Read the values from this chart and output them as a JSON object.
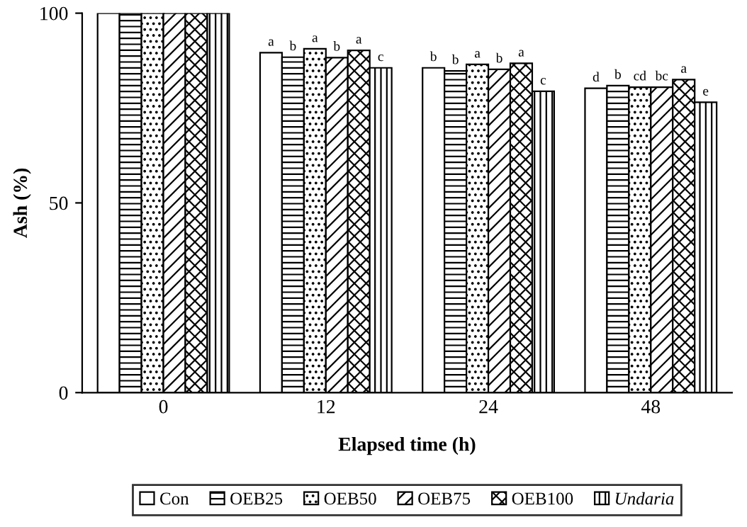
{
  "chart_data": {
    "type": "bar",
    "xlabel": "Elapsed time (h)",
    "ylabel": "Ash (%)",
    "categories": [
      "0",
      "12",
      "24",
      "48"
    ],
    "ylim": [
      0,
      100
    ],
    "yticks": [
      0,
      50,
      100
    ],
    "grid": false,
    "legend": "bottom",
    "series": [
      {
        "name": "Con",
        "color": "#000000",
        "values": [
          100,
          89.6,
          85.6,
          80.2
        ],
        "value_labels": [
          null,
          "a",
          "b",
          "d"
        ]
      },
      {
        "name": "OEB25",
        "color": "#000000",
        "values": [
          100,
          88.4,
          84.8,
          80.9
        ],
        "value_labels": [
          null,
          "b",
          "b",
          "b"
        ]
      },
      {
        "name": "OEB50",
        "color": "#000000",
        "values": [
          100,
          90.6,
          86.5,
          80.5
        ],
        "value_labels": [
          null,
          "a",
          "a",
          "cd"
        ]
      },
      {
        "name": "OEB75",
        "color": "#000000",
        "values": [
          100,
          88.3,
          85.2,
          80.5
        ],
        "value_labels": [
          null,
          "b",
          "b",
          "bc"
        ]
      },
      {
        "name": "OEB100",
        "color": "#000000",
        "values": [
          100,
          90.2,
          86.8,
          82.5
        ],
        "value_labels": [
          null,
          "a",
          "a",
          "a"
        ]
      },
      {
        "name": "Undaria",
        "color": "#000000",
        "values": [
          100,
          85.6,
          79.4,
          76.5
        ],
        "value_labels": [
          null,
          "c",
          "c",
          "e"
        ]
      }
    ]
  }
}
